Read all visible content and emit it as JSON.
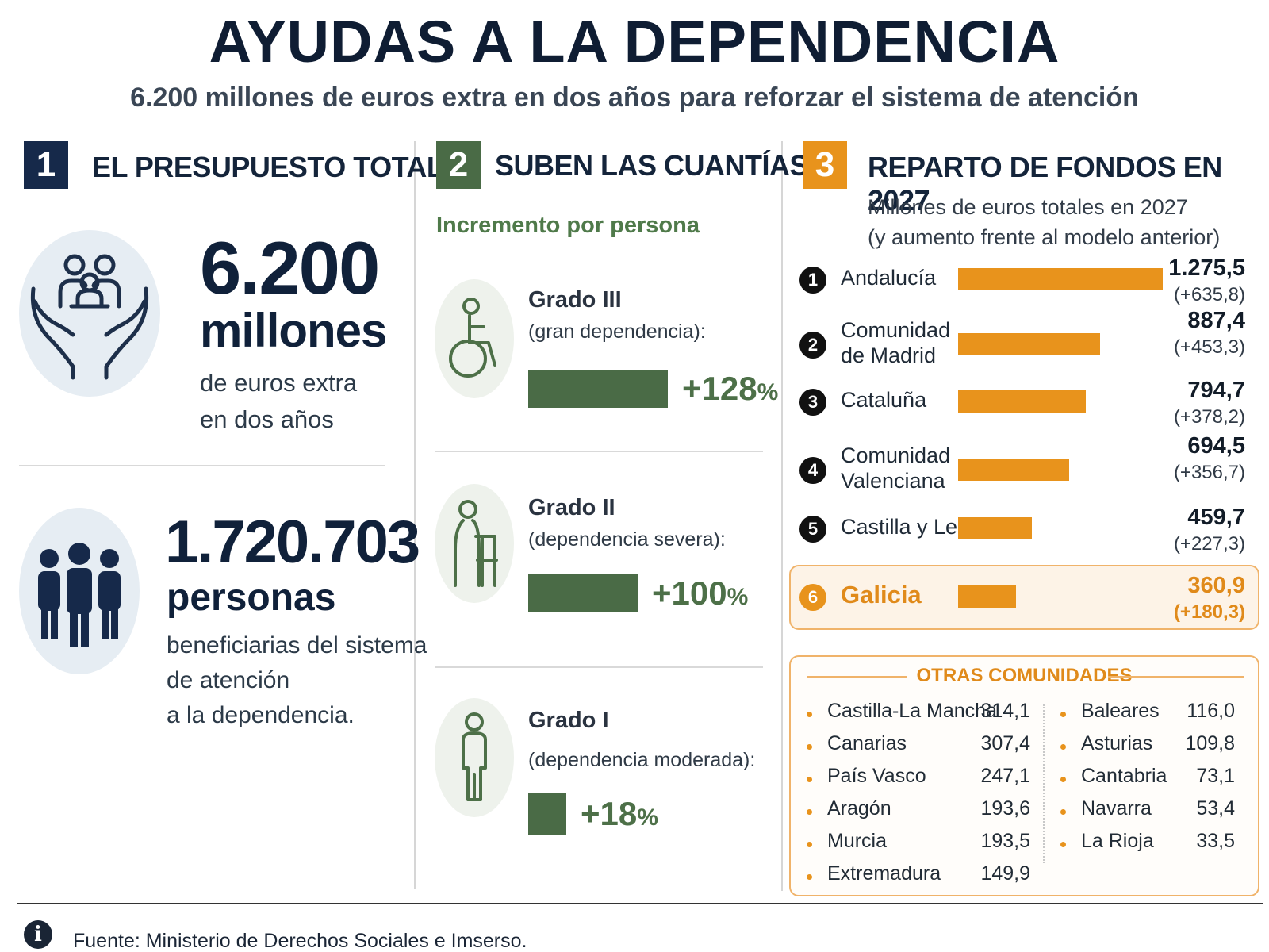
{
  "header": {
    "title": "AYUDAS A LA DEPENDENCIA",
    "subtitle": "6.200 millones de euros extra en dos años para reforzar el sistema de atención"
  },
  "colors": {
    "navy": "#16294a",
    "green": "#4a6b46",
    "orange": "#e8931c"
  },
  "section1": {
    "number": "1",
    "title": "EL PRESUPUESTO TOTAL",
    "budget": {
      "value": "6.200",
      "unit": "millones",
      "desc_line1": "de euros extra",
      "desc_line2": "en dos años"
    },
    "people": {
      "value": "1.720.703",
      "unit": "personas",
      "desc_line1": "beneficiarias del sistema",
      "desc_line2": "de atención",
      "desc_line3": "a la dependencia."
    }
  },
  "section2": {
    "number": "2",
    "title": "SUBEN LAS CUANTÍAS",
    "label": "Incremento por persona",
    "grades": [
      {
        "title": "Grado III",
        "subtitle": "(gran dependencia):",
        "pct_num": "+128",
        "pct_sign": "%"
      },
      {
        "title": "Grado II",
        "subtitle": "(dependencia severa):",
        "pct_num": "+100",
        "pct_sign": "%"
      },
      {
        "title": "Grado I",
        "subtitle": "(dependencia moderada):",
        "pct_num": "+18",
        "pct_sign": "%"
      }
    ]
  },
  "section3": {
    "number": "3",
    "title": "REPARTO DE FONDOS EN 2027",
    "sub_line1": "Millones de euros totales en 2027",
    "sub_line2": "(y aumento frente al modelo anterior)",
    "regions": [
      {
        "rank": "1",
        "name_line1": "Andalucía",
        "name_line2": "",
        "value": "1.275,5",
        "increase": "(+635,8)"
      },
      {
        "rank": "2",
        "name_line1": "Comunidad",
        "name_line2": "de Madrid",
        "value": "887,4",
        "increase": "(+453,3)"
      },
      {
        "rank": "3",
        "name_line1": "Cataluña",
        "name_line2": "",
        "value": "794,7",
        "increase": "(+378,2)"
      },
      {
        "rank": "4",
        "name_line1": "Comunidad",
        "name_line2": "Valenciana",
        "value": "694,5",
        "increase": "(+356,7)"
      },
      {
        "rank": "5",
        "name_line1": "Castilla y León",
        "name_line2": "",
        "value": "459,7",
        "increase": "(+227,3)"
      },
      {
        "rank": "6",
        "name_line1": "Galicia",
        "name_line2": "",
        "value": "360,9",
        "increase": "(+180,3)"
      }
    ],
    "others_title": "OTRAS COMUNIDADES",
    "others_left": [
      {
        "name": "Castilla-La Mancha",
        "value": "314,1"
      },
      {
        "name": "Canarias",
        "value": "307,4"
      },
      {
        "name": "País Vasco",
        "value": "247,1"
      },
      {
        "name": "Aragón",
        "value": "193,6"
      },
      {
        "name": "Murcia",
        "value": "193,5"
      },
      {
        "name": "Extremadura",
        "value": "149,9"
      }
    ],
    "others_right": [
      {
        "name": "Baleares",
        "value": "116,0"
      },
      {
        "name": "Asturias",
        "value": "109,8"
      },
      {
        "name": "Cantabria",
        "value": "73,1"
      },
      {
        "name": "Navarra",
        "value": "53,4"
      },
      {
        "name": "La Rioja",
        "value": "33,5"
      }
    ]
  },
  "chart_data": [
    {
      "type": "bar",
      "title": "SUBEN LAS CUANTÍAS",
      "subtitle": "Incremento por persona",
      "categories": [
        "Grado III",
        "Grado II",
        "Grado I"
      ],
      "values": [
        128,
        100,
        18
      ],
      "unit": "%"
    },
    {
      "type": "bar",
      "title": "REPARTO DE FONDOS EN 2027",
      "subtitle": "Millones de euros totales en 2027 (y aumento frente al modelo anterior)",
      "categories": [
        "Andalucía",
        "Comunidad de Madrid",
        "Cataluña",
        "Comunidad Valenciana",
        "Castilla y León",
        "Galicia"
      ],
      "series": [
        {
          "values": [
            1275.5,
            887.4,
            794.7,
            694.5,
            459.7,
            360.9
          ]
        },
        {
          "values": [
            635.8,
            453.3,
            378.2,
            356.7,
            227.3,
            180.3
          ]
        }
      ]
    }
  ],
  "footer": {
    "source": "Fuente: Ministerio de Derechos Sociales e Imserso."
  }
}
